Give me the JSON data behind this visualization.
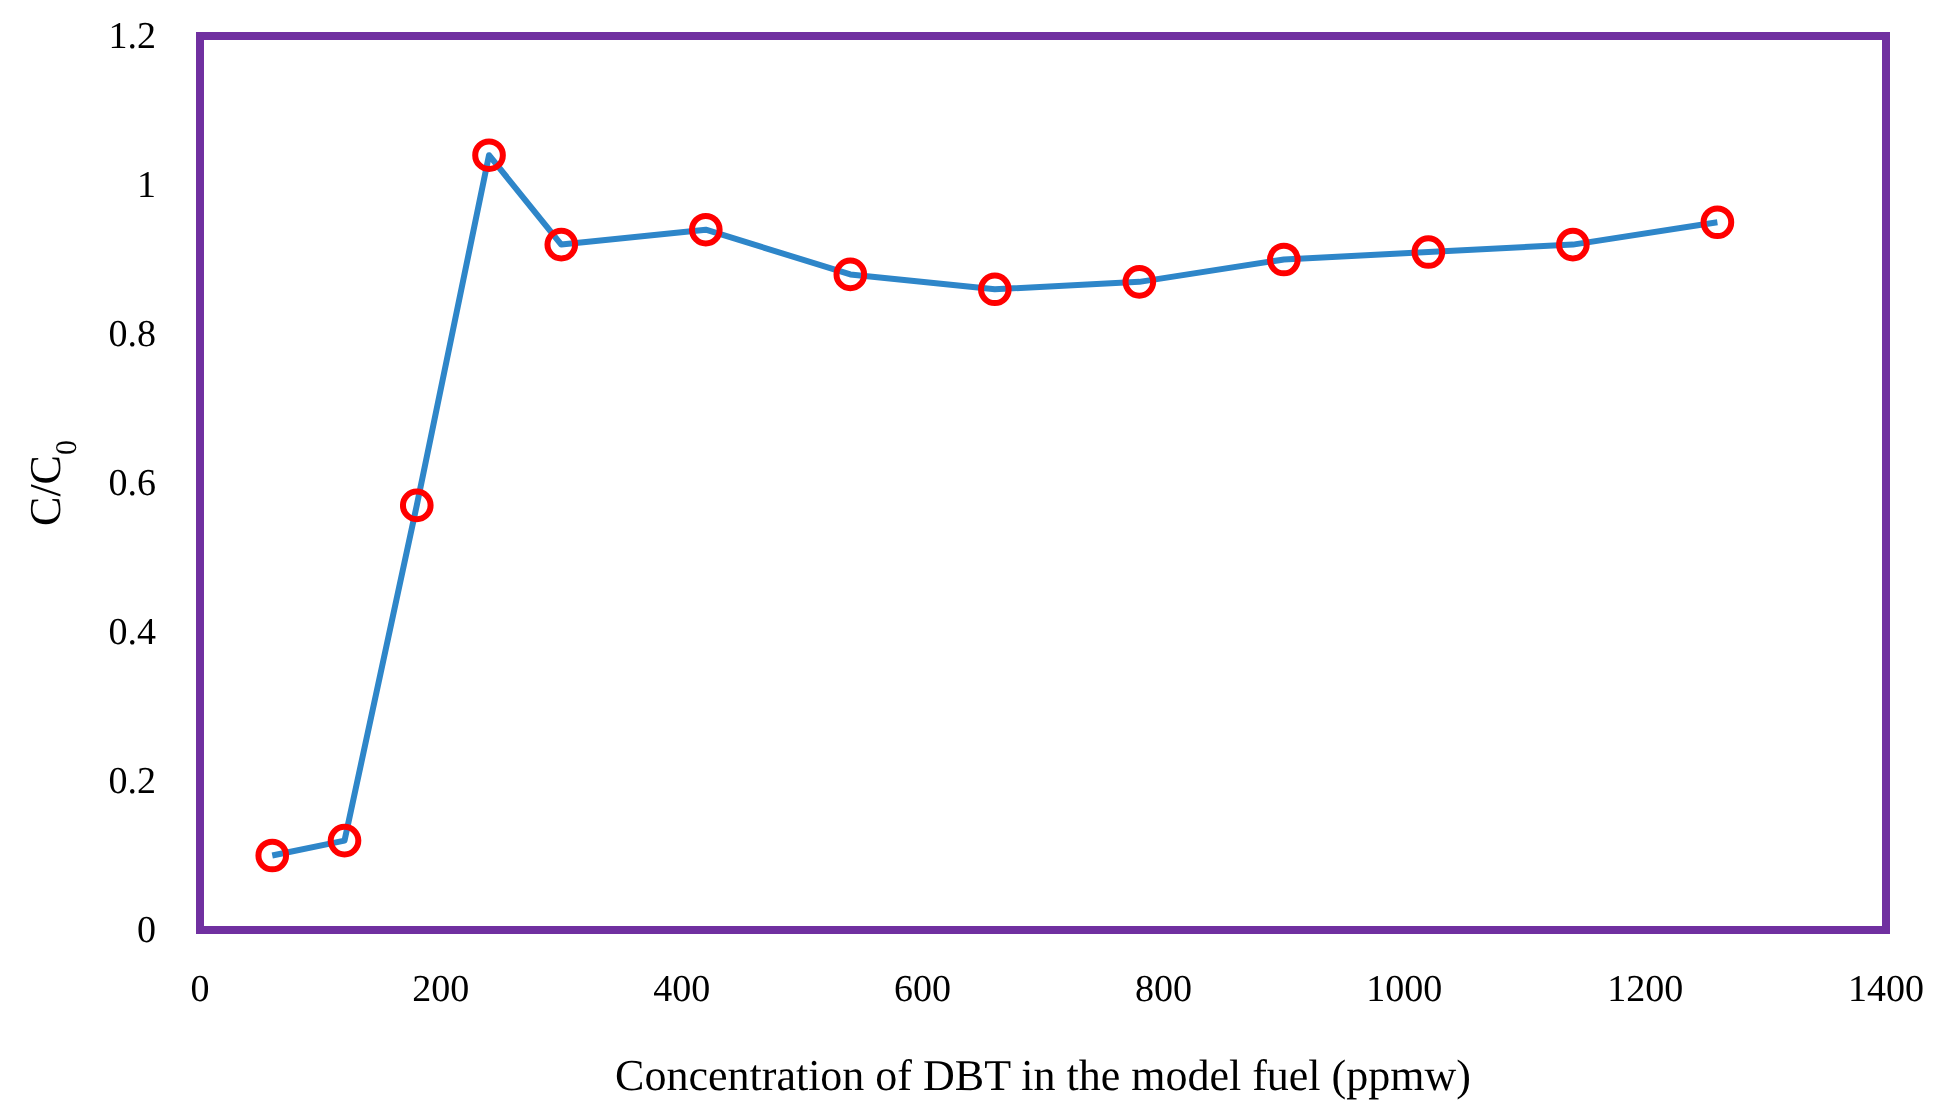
{
  "chart_data": {
    "type": "line",
    "xlabel": "Concentration of DBT in the model fuel (ppmw)",
    "ylabel": "C/C$_{0}$",
    "x": [
      60,
      120,
      180,
      240,
      300,
      420,
      540,
      660,
      780,
      900,
      1020,
      1140,
      1260
    ],
    "series": [
      {
        "color": "#2e86c9",
        "values": [
          0.1,
          0.12,
          0.57,
          1.04,
          0.92,
          0.94,
          0.88,
          0.86,
          0.87,
          0.9,
          0.91,
          0.92,
          0.95
        ]
      }
    ],
    "xlim": [
      0,
      1400
    ],
    "xticks": [
      0,
      200,
      400,
      600,
      800,
      1000,
      1200,
      1400
    ],
    "ylim": [
      0,
      1.2
    ],
    "yticks": [
      0,
      0.2,
      0.4,
      0.6,
      0.8,
      1,
      1.2
    ],
    "grid": false,
    "marker": "circle",
    "line_style": "solid"
  }
}
